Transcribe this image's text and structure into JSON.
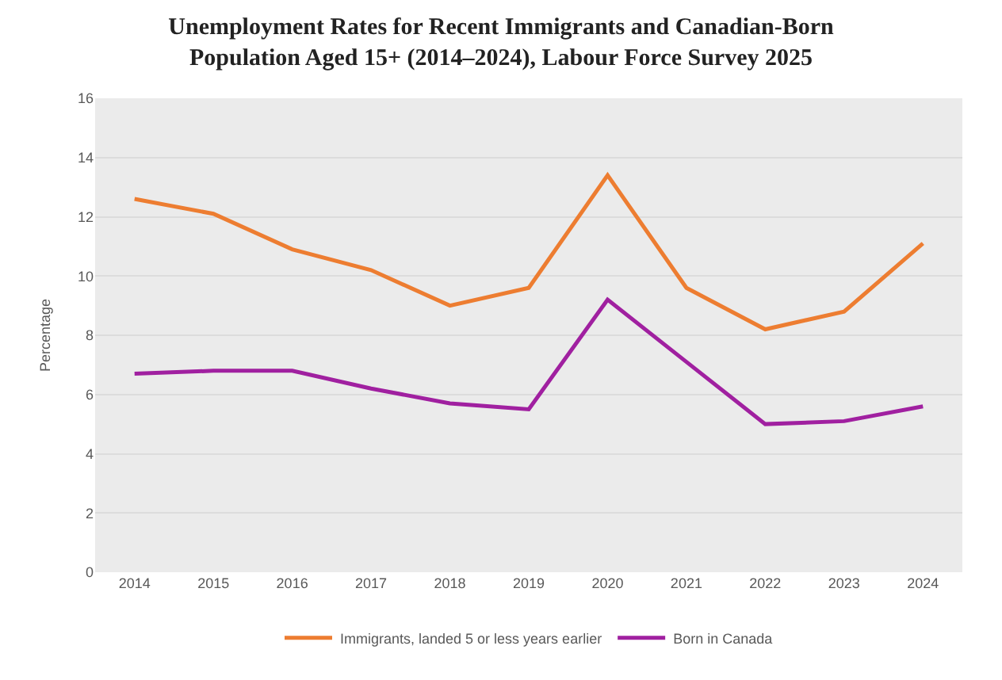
{
  "chart_data": {
    "type": "line",
    "title": "Unemployment Rates for Recent Immigrants and Canadian-Born\nPopulation Aged 15+ (2014–2024), Labour Force Survey 2025",
    "ylabel": "Percentage",
    "categories": [
      "2014",
      "2015",
      "2016",
      "2017",
      "2018",
      "2019",
      "2020",
      "2021",
      "2022",
      "2023",
      "2024"
    ],
    "series": [
      {
        "name": "Immigrants, landed 5 or less years earlier",
        "color": "#ed7d31",
        "values": [
          12.6,
          12.1,
          10.9,
          10.2,
          9.0,
          9.6,
          13.4,
          9.6,
          8.2,
          8.8,
          11.1
        ]
      },
      {
        "name": "Born in Canada",
        "color": "#a020a0",
        "values": [
          6.7,
          6.8,
          6.8,
          6.2,
          5.7,
          5.5,
          9.2,
          7.1,
          5.0,
          5.1,
          5.6
        ]
      }
    ],
    "ylim": [
      0,
      16
    ],
    "yticks": [
      0,
      2,
      4,
      6,
      8,
      10,
      12,
      14,
      16
    ],
    "grid": "y",
    "legend": "bottom",
    "marker": "none",
    "line_style": "solid"
  }
}
